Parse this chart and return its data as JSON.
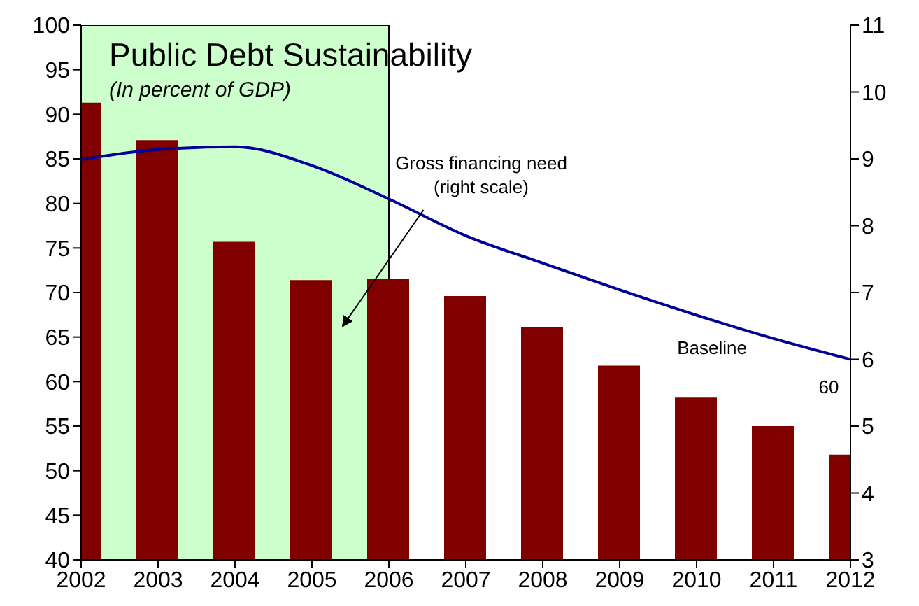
{
  "chart_data": {
    "type": "bar",
    "title": "Public Debt Sustainability",
    "subtitle": "(In percent of GDP)",
    "x": [
      2002,
      2003,
      2004,
      2005,
      2006,
      2007,
      2008,
      2009,
      2010,
      2011,
      2012
    ],
    "xlim": [
      2002,
      2012
    ],
    "xticks": [
      2002,
      2003,
      2004,
      2005,
      2006,
      2007,
      2008,
      2009,
      2010,
      2011,
      2012
    ],
    "ylim": [
      40,
      100
    ],
    "yticks": [
      40,
      45,
      50,
      55,
      60,
      65,
      70,
      75,
      80,
      85,
      90,
      95,
      100
    ],
    "y2lim": [
      3,
      11
    ],
    "y2ticks": [
      3,
      4,
      5,
      6,
      7,
      8,
      9,
      10,
      11
    ],
    "series": [
      {
        "color": "#800000",
        "values": [
          91.3,
          87.1,
          75.7,
          71.4,
          71.5,
          69.6,
          66.1,
          61.8,
          58.2,
          55.0,
          51.8
        ]
      },
      {
        "type": "line",
        "axis": "y2",
        "color": "#000099",
        "values": [
          8.99,
          9.14,
          9.18,
          8.9,
          8.4,
          7.85,
          7.44,
          7.04,
          6.66,
          6.31,
          6.0
        ]
      }
    ],
    "bands": [
      {
        "axis": "x",
        "from": 2002,
        "to": 2006,
        "color": "#ccffcc"
      }
    ],
    "annotations": [
      "Gross financing need\n(right scale)",
      "Baseline",
      "60"
    ]
  }
}
